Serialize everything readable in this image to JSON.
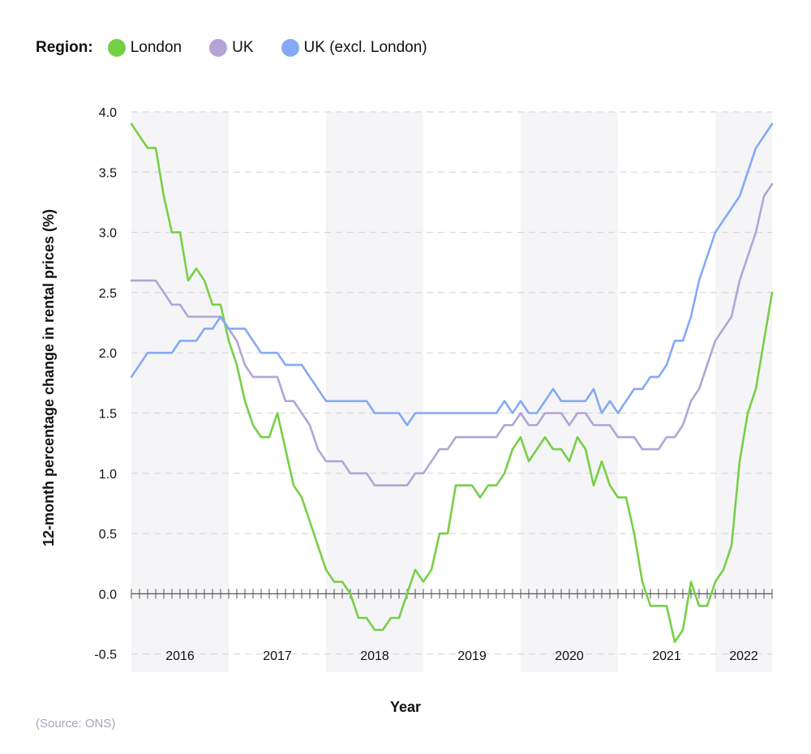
{
  "legend": {
    "title": "Region:"
  },
  "source": "(Source: ONS)",
  "chart_data": {
    "type": "line",
    "xlabel": "Year",
    "ylabel": "12-month percentage change in rental prices (%)",
    "ylim": [
      -0.65,
      4.0
    ],
    "yticks": [
      4.0,
      3.5,
      3.0,
      2.5,
      2.0,
      1.5,
      1.0,
      0.5,
      0.0,
      -0.5
    ],
    "grid": true,
    "legend_position": "top-left",
    "start": "2016-01",
    "end": "2022-07",
    "years": [
      "2016",
      "2017",
      "2018",
      "2019",
      "2020",
      "2021",
      "2022"
    ],
    "shaded_years": [
      "2016",
      "2018",
      "2020",
      "2022"
    ],
    "colors": {
      "shade": "#f5f5f7",
      "grid": "#d2d2d8",
      "axis": "#555555"
    },
    "series": [
      {
        "name": "London",
        "color": "#77cf46",
        "values": [
          3.9,
          3.8,
          3.7,
          3.7,
          3.3,
          3.0,
          3.0,
          2.6,
          2.7,
          2.6,
          2.4,
          2.4,
          2.1,
          1.9,
          1.6,
          1.4,
          1.3,
          1.3,
          1.5,
          1.2,
          0.9,
          0.8,
          0.6,
          0.4,
          0.2,
          0.1,
          0.1,
          0.0,
          -0.2,
          -0.2,
          -0.3,
          -0.3,
          -0.2,
          -0.2,
          0.0,
          0.2,
          0.1,
          0.2,
          0.5,
          0.5,
          0.9,
          0.9,
          0.9,
          0.8,
          0.9,
          0.9,
          1.0,
          1.2,
          1.3,
          1.1,
          1.2,
          1.3,
          1.2,
          1.2,
          1.1,
          1.3,
          1.2,
          0.9,
          1.1,
          0.9,
          0.8,
          0.8,
          0.5,
          0.1,
          -0.1,
          -0.1,
          -0.1,
          -0.4,
          -0.3,
          0.1,
          -0.1,
          -0.1,
          0.1,
          0.2,
          0.4,
          1.1,
          1.5,
          1.7,
          2.1,
          2.5
        ]
      },
      {
        "name": "UK",
        "color": "#b3a4d6",
        "values": [
          2.6,
          2.6,
          2.6,
          2.6,
          2.5,
          2.4,
          2.4,
          2.3,
          2.3,
          2.3,
          2.3,
          2.3,
          2.2,
          2.1,
          1.9,
          1.8,
          1.8,
          1.8,
          1.8,
          1.6,
          1.6,
          1.5,
          1.4,
          1.2,
          1.1,
          1.1,
          1.1,
          1.0,
          1.0,
          1.0,
          0.9,
          0.9,
          0.9,
          0.9,
          0.9,
          1.0,
          1.0,
          1.1,
          1.2,
          1.2,
          1.3,
          1.3,
          1.3,
          1.3,
          1.3,
          1.3,
          1.4,
          1.4,
          1.5,
          1.4,
          1.4,
          1.5,
          1.5,
          1.5,
          1.4,
          1.5,
          1.5,
          1.4,
          1.4,
          1.4,
          1.3,
          1.3,
          1.3,
          1.2,
          1.2,
          1.2,
          1.3,
          1.3,
          1.4,
          1.6,
          1.7,
          1.9,
          2.1,
          2.2,
          2.3,
          2.6,
          2.8,
          3.0,
          3.3,
          3.4
        ]
      },
      {
        "name": "UK (excl. London)",
        "color": "#85a9f5",
        "values": [
          1.8,
          1.9,
          2.0,
          2.0,
          2.0,
          2.0,
          2.1,
          2.1,
          2.1,
          2.2,
          2.2,
          2.3,
          2.2,
          2.2,
          2.2,
          2.1,
          2.0,
          2.0,
          2.0,
          1.9,
          1.9,
          1.9,
          1.8,
          1.7,
          1.6,
          1.6,
          1.6,
          1.6,
          1.6,
          1.6,
          1.5,
          1.5,
          1.5,
          1.5,
          1.4,
          1.5,
          1.5,
          1.5,
          1.5,
          1.5,
          1.5,
          1.5,
          1.5,
          1.5,
          1.5,
          1.5,
          1.6,
          1.5,
          1.6,
          1.5,
          1.5,
          1.6,
          1.7,
          1.6,
          1.6,
          1.6,
          1.6,
          1.7,
          1.5,
          1.6,
          1.5,
          1.6,
          1.7,
          1.7,
          1.8,
          1.8,
          1.9,
          2.1,
          2.1,
          2.3,
          2.6,
          2.8,
          3.0,
          3.1,
          3.2,
          3.3,
          3.5,
          3.7,
          3.8,
          3.9
        ]
      }
    ]
  }
}
